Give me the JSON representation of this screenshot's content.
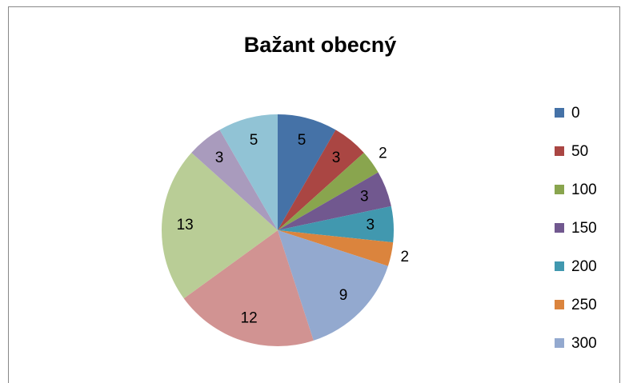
{
  "chart_data": {
    "type": "pie",
    "title": "Bažant obecný",
    "categories": [
      "0",
      "50",
      "100",
      "150",
      "200",
      "250",
      "300",
      null,
      null,
      null,
      null
    ],
    "values": [
      5,
      3,
      2,
      3,
      3,
      2,
      9,
      12,
      13,
      3,
      5
    ],
    "colors": [
      "#4572a7",
      "#aa4643",
      "#89a54e",
      "#71588f",
      "#4198af",
      "#db843d",
      "#93a9cf",
      "#d19392",
      "#b9cd96",
      "#a99bbd",
      "#91c3d5"
    ],
    "legend": "right"
  }
}
